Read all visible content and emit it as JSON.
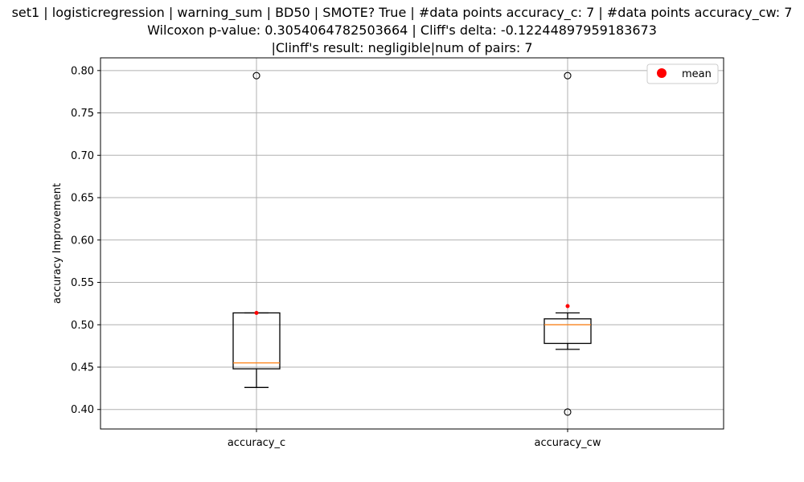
{
  "chart_data": {
    "type": "box",
    "title_lines": [
      "set1 | logisticregression | warning_sum | BD50 | SMOTE? True | #data points accuracy_c: 7 | #data points accuracy_cw: 7",
      "Wilcoxon p-value: 0.3054064782503664 | Cliff's delta: -0.12244897959183673",
      "|Clinff's result: negligible|num of pairs: 7"
    ],
    "xlabel": "",
    "ylabel": "accuracy Improvement",
    "ylim": [
      0.377,
      0.815
    ],
    "yticks": [
      "0.40",
      "0.45",
      "0.50",
      "0.55",
      "0.60",
      "0.65",
      "0.70",
      "0.75",
      "0.80"
    ],
    "ytick_values": [
      0.4,
      0.45,
      0.5,
      0.55,
      0.6,
      0.65,
      0.7,
      0.75,
      0.8
    ],
    "categories": [
      "accuracy_c",
      "accuracy_cw"
    ],
    "boxes": [
      {
        "name": "accuracy_c",
        "whisker_low": 0.426,
        "q1": 0.448,
        "median": 0.455,
        "q3": 0.514,
        "whisker_high": 0.514,
        "mean": 0.514,
        "outliers": [
          0.794
        ]
      },
      {
        "name": "accuracy_cw",
        "whisker_low": 0.471,
        "q1": 0.478,
        "median": 0.5,
        "q3": 0.507,
        "whisker_high": 0.514,
        "mean": 0.522,
        "outliers": [
          0.397,
          0.794
        ]
      }
    ],
    "grid": true,
    "legend": {
      "placement": "top-right",
      "entries": [
        {
          "label": "mean",
          "color": "#ff0000"
        }
      ]
    },
    "colors": {
      "box": "#000000",
      "median": "#ff7f0e",
      "mean": "#ff0000",
      "grid": "#b0b0b0"
    }
  }
}
